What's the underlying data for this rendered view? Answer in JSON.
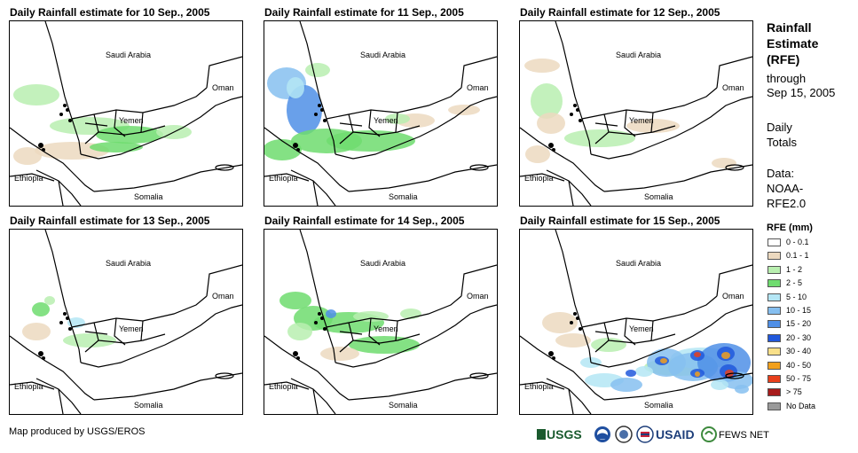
{
  "panels": [
    {
      "title": "Daily Rainfall estimate for 10 Sep., 2005",
      "rain": "p10"
    },
    {
      "title": "Daily Rainfall estimate for 11 Sep., 2005",
      "rain": "p11"
    },
    {
      "title": "Daily Rainfall estimate for 12 Sep., 2005",
      "rain": "p12"
    },
    {
      "title": "Daily Rainfall estimate for 13 Sep., 2005",
      "rain": "p13"
    },
    {
      "title": "Daily Rainfall estimate for 14 Sep., 2005",
      "rain": "p14"
    },
    {
      "title": "Daily Rainfall estimate for 15 Sep., 2005",
      "rain": "p15"
    }
  ],
  "map_labels": {
    "saudi": "Saudi Arabia",
    "oman": "Oman",
    "yemen": "Yemen",
    "ethiopia": "Ethiopia",
    "somalia": "Somalia"
  },
  "sidebar": {
    "title_line1": "Rainfall",
    "title_line2": "Estimate",
    "title_line3": "(RFE)",
    "through_line1": "through",
    "through_line2": "Sep 15, 2005",
    "daily_line1": "Daily",
    "daily_line2": "Totals",
    "data_line1": "Data:",
    "data_line2": "NOAA-",
    "data_line3": "RFE2.0"
  },
  "legend": {
    "title": "RFE (mm)",
    "items": [
      {
        "label": "0 - 0.1",
        "color": "#ffffff"
      },
      {
        "label": "0.1 - 1",
        "color": "#ecd9bf"
      },
      {
        "label": "1 - 2",
        "color": "#b9efb0"
      },
      {
        "label": "2 - 5",
        "color": "#6fdc6f"
      },
      {
        "label": "5 - 10",
        "color": "#b4e6f5"
      },
      {
        "label": "10 - 15",
        "color": "#86bff0"
      },
      {
        "label": "15 - 20",
        "color": "#4f8fe6"
      },
      {
        "label": "20 - 30",
        "color": "#2158dc"
      },
      {
        "label": "30 - 40",
        "color": "#f9e089"
      },
      {
        "label": "40 - 50",
        "color": "#f2a01c"
      },
      {
        "label": "50 - 75",
        "color": "#e8401c"
      },
      {
        "label": "> 75",
        "color": "#a81c1c"
      },
      {
        "label": "No Data",
        "color": "#9a9a9a"
      }
    ]
  },
  "credit": "Map produced by USGS/EROS",
  "logos": {
    "usgs": "USGS",
    "usaid": "USAID",
    "fews": "FEWS NET"
  }
}
